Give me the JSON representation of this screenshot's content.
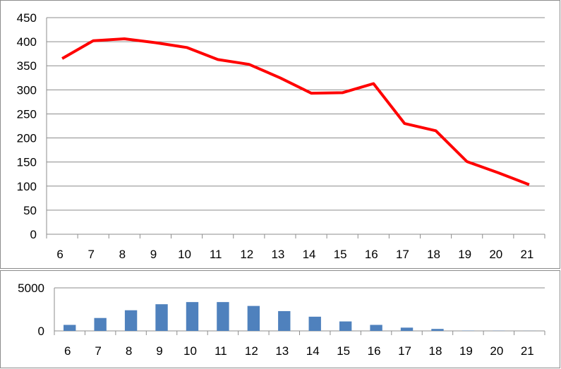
{
  "chart_data": [
    {
      "type": "line",
      "title": "",
      "xlabel": "",
      "ylabel": "",
      "categories": [
        "6",
        "7",
        "8",
        "9",
        "10",
        "11",
        "12",
        "13",
        "14",
        "15",
        "16",
        "17",
        "18",
        "19",
        "20",
        "21"
      ],
      "series": [
        {
          "values": [
            365,
            402,
            406,
            398,
            388,
            363,
            353,
            325,
            293,
            294,
            313,
            230,
            215,
            151,
            128,
            103
          ],
          "color": "#ff0000"
        }
      ],
      "ylim": [
        0,
        450
      ],
      "yticks": [
        "0",
        "50",
        "100",
        "150",
        "200",
        "250",
        "300",
        "350",
        "400",
        "450"
      ],
      "grid": true,
      "legend": "none"
    },
    {
      "type": "bar",
      "title": "",
      "xlabel": "",
      "ylabel": "",
      "categories": [
        "6",
        "7",
        "8",
        "9",
        "10",
        "11",
        "12",
        "13",
        "14",
        "15",
        "16",
        "17",
        "18",
        "19",
        "20",
        "21"
      ],
      "series": [
        {
          "values": [
            700,
            1500,
            2400,
            3100,
            3350,
            3350,
            2900,
            2300,
            1650,
            1100,
            700,
            380,
            230,
            30,
            20,
            10
          ],
          "color": "#4f81bd"
        }
      ],
      "ylim": [
        0,
        5000
      ],
      "yticks": [
        "0",
        "5000"
      ],
      "grid": true,
      "legend": "none"
    }
  ]
}
